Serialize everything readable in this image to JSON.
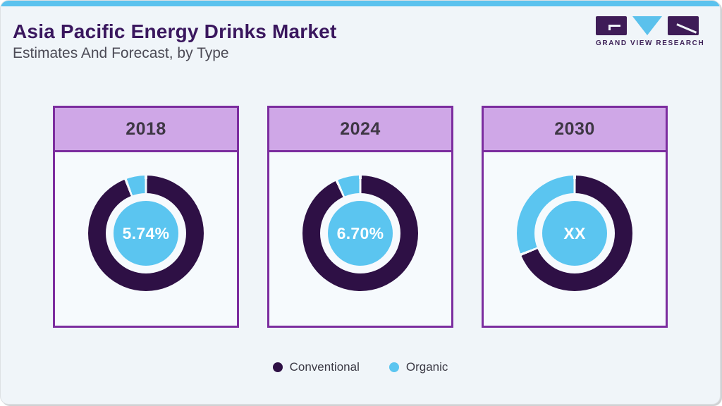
{
  "page": {
    "title": "Asia Pacific Energy Drinks Market",
    "subtitle": "Estimates And Forecast, by Type"
  },
  "logo": {
    "text": "GRAND VIEW RESEARCH"
  },
  "legend": {
    "items": [
      {
        "label": "Conventional",
        "color": "#2e1045"
      },
      {
        "label": "Organic",
        "color": "#5bc5f0"
      }
    ]
  },
  "chart_data": {
    "type": "pie",
    "title": "Asia Pacific Energy Drinks Market",
    "subtitle": "Estimates And Forecast, by Type",
    "legend": [
      "Conventional",
      "Organic"
    ],
    "legend_position": "bottom",
    "colors": {
      "conventional": "#2e1045",
      "organic": "#5bc5f0",
      "top_bar": "#5bc2ee",
      "card_border": "#7c2d9f",
      "card_header_bg": "#cfa7e7",
      "title_text": "#3a175e",
      "separator": "#f6fafd"
    },
    "charts": [
      {
        "year": "2018",
        "center_label": "5.74%",
        "series": [
          {
            "name": "Conventional",
            "value_pct": 94.26
          },
          {
            "name": "Organic",
            "value_pct": 5.74
          }
        ],
        "organic_pct_visual": 5.74
      },
      {
        "year": "2024",
        "center_label": "6.70%",
        "series": [
          {
            "name": "Conventional",
            "value_pct": 93.3
          },
          {
            "name": "Organic",
            "value_pct": 6.7
          }
        ],
        "organic_pct_visual": 6.7
      },
      {
        "year": "2030",
        "center_label": "XX",
        "series": [
          {
            "name": "Conventional",
            "value_pct": "XX"
          },
          {
            "name": "Organic",
            "value_pct": "XX"
          }
        ],
        "organic_pct_visual": 31
      }
    ]
  }
}
